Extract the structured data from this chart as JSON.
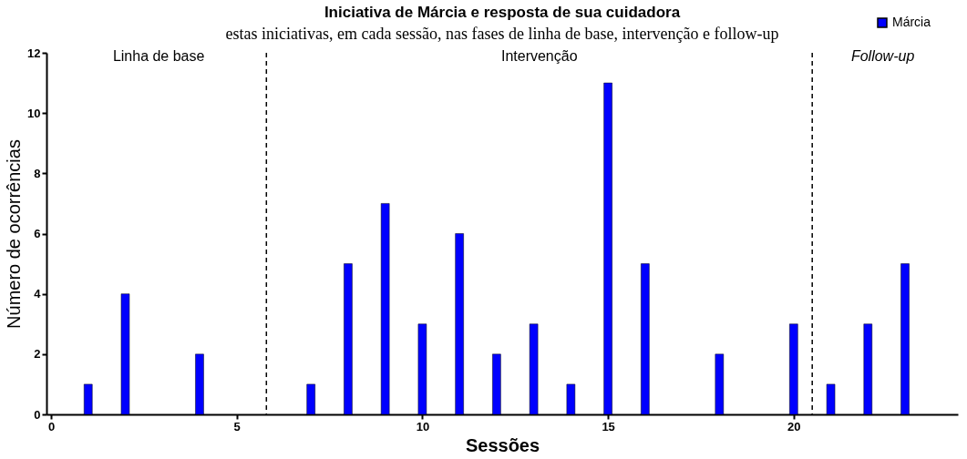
{
  "chart_data": {
    "type": "bar",
    "title": "Iniciativa de Márcia e resposta de sua cuidadora",
    "xlabel": "Sessões",
    "ylabel": "Número de ocorrências",
    "x": [
      1,
      2,
      4,
      7,
      8,
      9,
      10,
      11,
      12,
      13,
      14,
      15,
      16,
      18,
      20,
      21,
      22,
      23
    ],
    "series": [
      {
        "name": "Márcia",
        "color": "#0000ff",
        "values": [
          1,
          4,
          2,
          1,
          5,
          7,
          3,
          6,
          2,
          3,
          1,
          11,
          5,
          2,
          3,
          1,
          3,
          5
        ]
      }
    ],
    "xlim": [
      0,
      24.3
    ],
    "xticks": [
      0,
      5,
      10,
      15,
      20
    ],
    "ylim": [
      0,
      12
    ],
    "yticks": [
      0,
      2,
      4,
      6,
      8,
      10,
      12
    ],
    "ref_lines": [
      {
        "axis": "x",
        "value": 5.8,
        "line_style": "dashed",
        "color": "#000000"
      },
      {
        "axis": "x",
        "value": 20.5,
        "line_style": "dashed",
        "color": "#000000"
      }
    ],
    "annotations": [
      "estas iniciativas, em cada sessão, nas fases de linha de base, intervenção e follow-up",
      "Linha de base",
      "Intervenção",
      "Follow-up"
    ],
    "legend": "top right",
    "grid": false
  }
}
